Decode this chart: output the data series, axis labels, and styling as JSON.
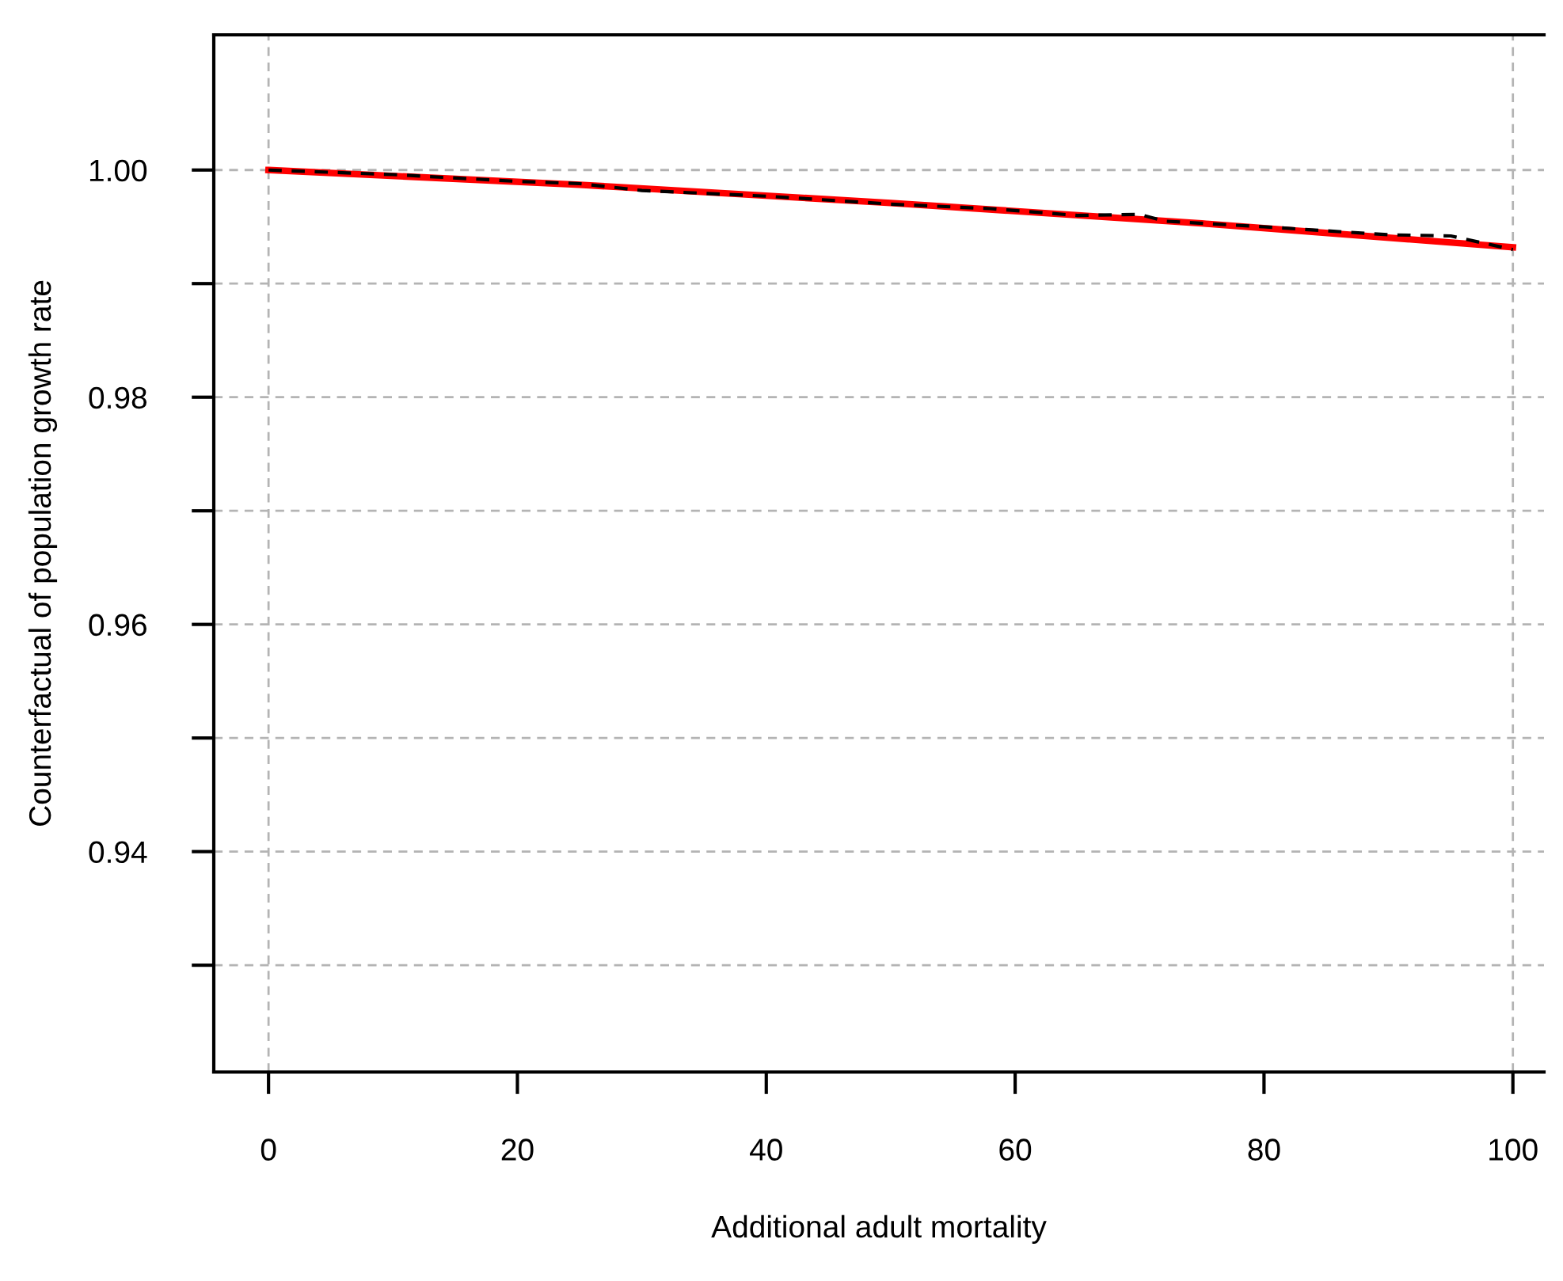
{
  "chart_data": {
    "type": "line",
    "xlabel": "Additional adult mortality",
    "ylabel": "Counterfactual of population growth rate",
    "xlim": [
      -4.4,
      102.5
    ],
    "ylim": [
      0.9206,
      1.0119
    ],
    "xticks": [
      0,
      20,
      40,
      60,
      80,
      100
    ],
    "yticks": [
      {
        "value": 0.93,
        "label": null
      },
      0.94,
      {
        "value": 0.95,
        "label": null
      },
      0.96,
      {
        "value": 0.97,
        "label": null
      },
      0.98,
      {
        "value": 0.99,
        "label": null
      },
      "1.00"
    ],
    "grid": "y",
    "ref_lines": [
      {
        "axis": "x",
        "value": 0,
        "color": "#b4b4b4",
        "line_style": "dashed"
      },
      {
        "axis": "x",
        "value": 100,
        "color": "#b4b4b4",
        "line_style": "dashed"
      }
    ],
    "series": [
      {
        "color": "#000000",
        "line_style": "dashed",
        "x": [
          0,
          10,
          20,
          25,
          30,
          40,
          50,
          58,
          65,
          70,
          72,
          80,
          90,
          95,
          100
        ],
        "values": [
          1.0,
          0.9996,
          0.999,
          0.9988,
          0.9982,
          0.9977,
          0.997,
          0.9966,
          0.996,
          0.9961,
          0.9955,
          0.995,
          0.9943,
          0.9942,
          0.993
        ]
      },
      {
        "color": "#ff0000",
        "line_style": "solid",
        "x": [
          0,
          25,
          50,
          75,
          100
        ],
        "values": [
          1.0,
          0.9987,
          0.9971,
          0.9953,
          0.9932
        ]
      }
    ]
  }
}
